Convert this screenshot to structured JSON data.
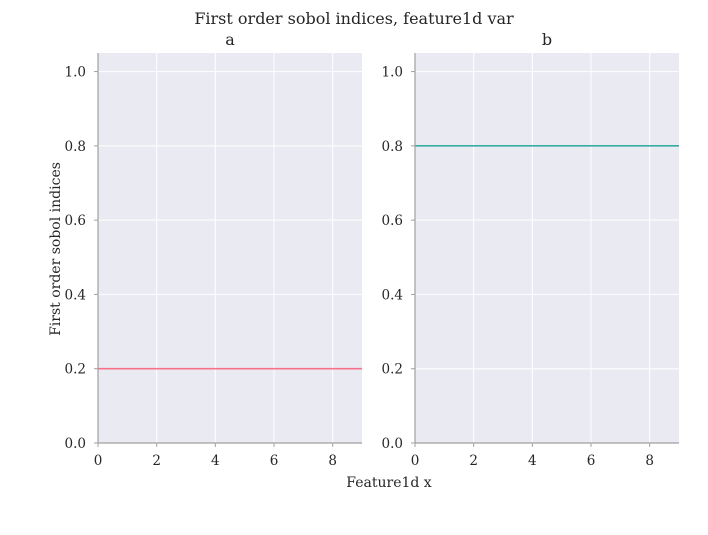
{
  "figure": {
    "suptitle": "First order sobol indices, feature1d var",
    "xlabel": "Feature1d x",
    "ylabel": "First order sobol indices"
  },
  "chart_data": [
    {
      "type": "line",
      "title": "a",
      "xlim": [
        0,
        9
      ],
      "ylim": [
        0,
        1.05
      ],
      "xticks": [
        0,
        2,
        4,
        6,
        8
      ],
      "yticks": [
        0.0,
        0.2,
        0.4,
        0.6,
        0.8,
        1.0
      ],
      "xtick_labels": [
        "0",
        "2",
        "4",
        "6",
        "8"
      ],
      "ytick_labels": [
        "0.0",
        "0.2",
        "0.4",
        "0.6",
        "0.8",
        "1.0"
      ],
      "grid": true,
      "series": [
        {
          "color": "#f77189",
          "x": [
            0,
            9
          ],
          "y": [
            0.2,
            0.2
          ]
        }
      ]
    },
    {
      "type": "line",
      "title": "b",
      "xlim": [
        0,
        9
      ],
      "ylim": [
        0,
        1.05
      ],
      "xticks": [
        0,
        2,
        4,
        6,
        8
      ],
      "yticks": [
        0.0,
        0.2,
        0.4,
        0.6,
        0.8,
        1.0
      ],
      "xtick_labels": [
        "0",
        "2",
        "4",
        "6",
        "8"
      ],
      "ytick_labels": [
        "0.0",
        "0.2",
        "0.4",
        "0.6",
        "0.8",
        "1.0"
      ],
      "grid": true,
      "series": [
        {
          "color": "#36ada4",
          "x": [
            0,
            9
          ],
          "y": [
            0.8,
            0.8
          ]
        }
      ]
    }
  ]
}
